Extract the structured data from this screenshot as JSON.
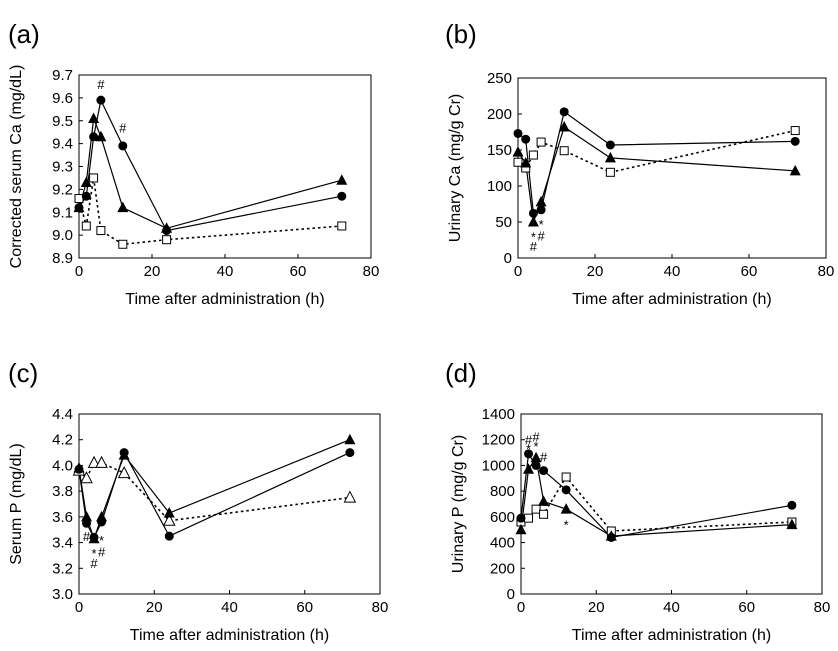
{
  "chart_data": [
    {
      "panel": "(a)",
      "type": "line",
      "xlabel": "Time after administration (h)",
      "ylabel": "Corrected serum Ca (mg/dL)",
      "xlim": [
        0,
        80
      ],
      "ylim": [
        8.9,
        9.7
      ],
      "xticks": [
        "0",
        "20",
        "40",
        "60",
        "80"
      ],
      "yticks": [
        "8.9",
        "9.0",
        "9.1",
        "9.2",
        "9.3",
        "9.4",
        "9.5",
        "9.6",
        "9.7"
      ],
      "series": [
        {
          "marker": "circle",
          "line": "solid",
          "x": [
            0,
            2,
            4,
            6,
            12,
            24,
            72
          ],
          "y": [
            9.12,
            9.17,
            9.43,
            9.59,
            9.39,
            9.02,
            9.17
          ]
        },
        {
          "marker": "triangle",
          "line": "solid",
          "x": [
            0,
            2,
            4,
            6,
            12,
            24,
            72
          ],
          "y": [
            9.12,
            9.23,
            9.51,
            9.43,
            9.12,
            9.03,
            9.24
          ]
        },
        {
          "marker": "square-open",
          "line": "dotted",
          "x": [
            0,
            2,
            4,
            6,
            12,
            24,
            72
          ],
          "y": [
            9.16,
            9.04,
            9.25,
            9.02,
            8.96,
            8.98,
            9.04
          ]
        }
      ],
      "annotations": [
        {
          "text": "#",
          "x": 6,
          "y": 9.66
        },
        {
          "text": "#",
          "x": 12,
          "y": 9.47
        }
      ]
    },
    {
      "panel": "(b)",
      "type": "line",
      "xlabel": "Time after administration (h)",
      "ylabel": "Urinary Ca (mg/g Cr)",
      "xlim": [
        0,
        80
      ],
      "ylim": [
        0,
        250
      ],
      "xticks": [
        "0",
        "20",
        "40",
        "60",
        "80"
      ],
      "yticks": [
        "0",
        "50",
        "100",
        "150",
        "200",
        "250"
      ],
      "series": [
        {
          "marker": "circle",
          "line": "solid",
          "x": [
            0,
            2,
            4,
            6,
            12,
            24,
            72
          ],
          "y": [
            173,
            165,
            62,
            67,
            203,
            157,
            162
          ]
        },
        {
          "marker": "triangle",
          "line": "solid",
          "x": [
            0,
            2,
            4,
            6,
            12,
            24,
            72
          ],
          "y": [
            147,
            132,
            50,
            78,
            182,
            139,
            121
          ]
        },
        {
          "marker": "square-open",
          "line": "dotted",
          "x": [
            0,
            2,
            4,
            6,
            12,
            24,
            72
          ],
          "y": [
            133,
            125,
            143,
            161,
            149,
            119,
            177
          ]
        }
      ],
      "annotations": [
        {
          "text": "*",
          "x": 4,
          "y": 30
        },
        {
          "text": "#",
          "x": 4,
          "y": 17
        },
        {
          "text": "*",
          "x": 6,
          "y": 47
        },
        {
          "text": "#",
          "x": 6,
          "y": 31
        }
      ]
    },
    {
      "panel": "(c)",
      "type": "line",
      "xlabel": "Time after administration (h)",
      "ylabel": "Serum P (mg/dL)",
      "xlim": [
        0,
        80
      ],
      "ylim": [
        3.0,
        4.4
      ],
      "xticks": [
        "0",
        "20",
        "40",
        "60",
        "80"
      ],
      "yticks": [
        "3.0",
        "3.2",
        "3.4",
        "3.6",
        "3.8",
        "4.0",
        "4.2",
        "4.4"
      ],
      "series": [
        {
          "marker": "circle",
          "line": "solid",
          "x": [
            0,
            2,
            4,
            6,
            12,
            24,
            72
          ],
          "y": [
            3.97,
            3.55,
            3.44,
            3.56,
            4.1,
            3.45,
            4.1
          ]
        },
        {
          "marker": "triangle",
          "line": "solid",
          "x": [
            0,
            2,
            4,
            6,
            12,
            24,
            72
          ],
          "y": [
            3.98,
            3.6,
            3.43,
            3.6,
            4.08,
            3.63,
            4.2
          ]
        },
        {
          "marker": "triangle-open",
          "line": "dotted",
          "x": [
            0,
            2,
            4,
            6,
            12,
            24,
            72
          ],
          "y": [
            3.96,
            3.9,
            4.02,
            4.02,
            3.94,
            3.57,
            3.75
          ]
        }
      ],
      "annotations": [
        {
          "text": "#",
          "x": 2,
          "y": 3.45
        },
        {
          "text": "*",
          "x": 4,
          "y": 3.32
        },
        {
          "text": "#",
          "x": 4,
          "y": 3.24
        },
        {
          "text": "*",
          "x": 6,
          "y": 3.42
        },
        {
          "text": "#",
          "x": 6,
          "y": 3.33
        }
      ]
    },
    {
      "panel": "(d)",
      "type": "line",
      "xlabel": "Time after administration (h)",
      "ylabel": "Urinary P (mg/g Cr)",
      "xlim": [
        0,
        80
      ],
      "ylim": [
        0,
        1400
      ],
      "xticks": [
        "0",
        "20",
        "40",
        "60",
        "80"
      ],
      "yticks": [
        "0",
        "200",
        "400",
        "600",
        "800",
        "1000",
        "1200",
        "1400"
      ],
      "series": [
        {
          "marker": "circle",
          "line": "solid",
          "x": [
            0,
            2,
            4,
            6,
            12,
            24,
            72
          ],
          "y": [
            590,
            1090,
            1000,
            960,
            810,
            440,
            690
          ]
        },
        {
          "marker": "triangle",
          "line": "solid",
          "x": [
            0,
            2,
            4,
            6,
            12,
            24,
            72
          ],
          "y": [
            500,
            970,
            1060,
            720,
            660,
            450,
            540
          ]
        },
        {
          "marker": "square-open",
          "line": "dotted",
          "x": [
            0,
            2,
            4,
            6,
            12,
            24,
            72
          ],
          "y": [
            560,
            590,
            660,
            620,
            910,
            490,
            560
          ]
        }
      ],
      "annotations": [
        {
          "text": "#",
          "x": 2,
          "y": 1200
        },
        {
          "text": "*",
          "x": 2,
          "y": 1130
        },
        {
          "text": "#",
          "x": 4,
          "y": 1225
        },
        {
          "text": "*",
          "x": 4,
          "y": 1150
        },
        {
          "text": "#",
          "x": 6,
          "y": 1070
        },
        {
          "text": "*",
          "x": 12,
          "y": 540
        }
      ]
    }
  ]
}
